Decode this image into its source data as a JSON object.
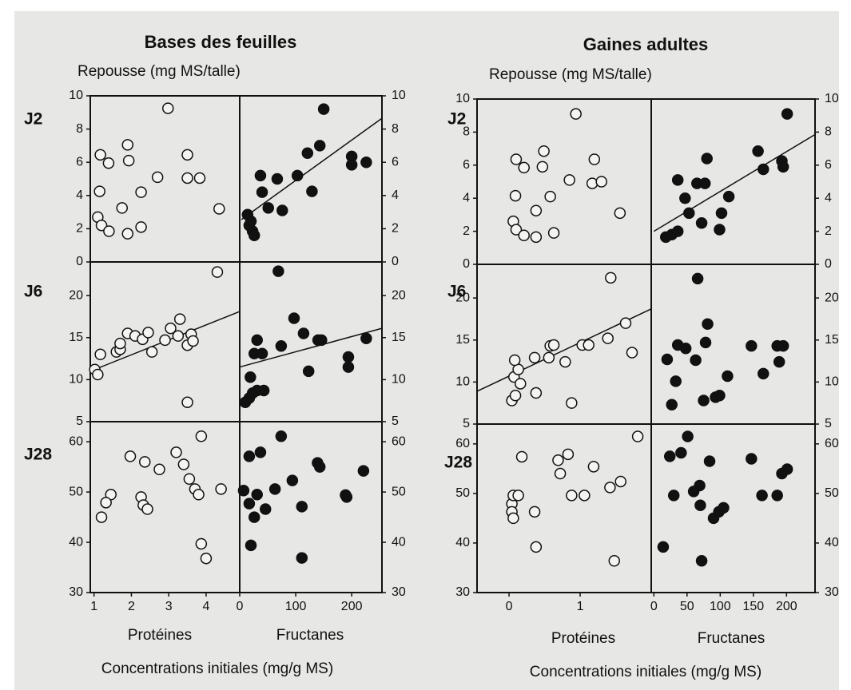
{
  "figure": {
    "groups": [
      {
        "title": "Bases des feuilles",
        "ylabel": "Repousse (mg MS/talle)",
        "rows": [
          "J2",
          "J6",
          "J28"
        ],
        "xlabels": [
          "Protéines",
          "Fructanes"
        ],
        "footer": "Concentrations initiales (mg/g MS)"
      },
      {
        "title": "Gaines adultes",
        "ylabel": "Repousse (mg MS/talle)",
        "rows": [
          "J2",
          "J6",
          "J28"
        ],
        "xlabels": [
          "Protéines",
          "Fructanes"
        ],
        "footer": "Concentrations initiales (mg/g MS)"
      }
    ]
  },
  "chart_data": [
    {
      "type": "scatter",
      "marker": "open",
      "color": "#111111",
      "xlim": [
        0.9,
        4.9
      ],
      "ylim": [
        0,
        10
      ],
      "yticks": [
        0,
        2,
        4,
        6,
        8,
        10
      ],
      "x": [
        1.17,
        1.39,
        1.15,
        1.1,
        1.2,
        1.4,
        1.9,
        1.75,
        1.9,
        1.93,
        2.26,
        2.26,
        2.7,
        2.98,
        3.5,
        3.5,
        3.83,
        4.35
      ],
      "values": [
        6.45,
        5.95,
        4.25,
        2.7,
        2.2,
        1.85,
        1.7,
        3.25,
        7.05,
        6.1,
        4.2,
        2.1,
        5.1,
        9.25,
        6.45,
        5.05,
        5.05,
        3.2
      ]
    },
    {
      "type": "scatter",
      "marker": "filled",
      "color": "#111111",
      "xlim": [
        0,
        254
      ],
      "ylim": [
        0,
        10
      ],
      "yticks": [
        0,
        2,
        4,
        6,
        8,
        10
      ],
      "x": [
        14,
        17,
        23,
        26,
        20,
        37,
        40,
        51,
        67,
        76,
        103,
        121,
        129,
        143,
        150,
        200,
        200,
        226
      ],
      "values": [
        2.85,
        2.2,
        1.85,
        1.6,
        2.45,
        5.2,
        4.2,
        3.25,
        5,
        3.1,
        5.2,
        6.55,
        4.25,
        7.0,
        9.2,
        6.35,
        5.85,
        6.0
      ],
      "trendline": {
        "x": [
          3,
          254
        ],
        "values": [
          2.55,
          8.65
        ]
      }
    },
    {
      "type": "scatter",
      "marker": "open",
      "color": "#111111",
      "xlim": [
        0.9,
        4.9
      ],
      "ylim": [
        5,
        24
      ],
      "yticks": [
        5,
        10,
        15,
        20
      ],
      "x": [
        1.02,
        1.1,
        1.17,
        1.6,
        1.7,
        1.7,
        1.9,
        2.1,
        2.3,
        2.45,
        2.55,
        2.9,
        3.05,
        3.3,
        3.25,
        3.5,
        3.6,
        3.65,
        3.5,
        4.3
      ],
      "values": [
        11.2,
        10.6,
        13.0,
        13.3,
        13.6,
        14.3,
        15.5,
        15.2,
        14.8,
        15.6,
        13.3,
        14.7,
        16.1,
        17.2,
        15.2,
        14.1,
        15.4,
        14.6,
        7.3,
        22.8
      ],
      "trendline": {
        "x": [
          0.9,
          4.9
        ],
        "values": [
          11.0,
          18.1
        ]
      }
    },
    {
      "type": "scatter",
      "marker": "filled",
      "color": "#111111",
      "xlim": [
        0,
        254
      ],
      "ylim": [
        5,
        24
      ],
      "yticks": [
        5,
        10,
        15,
        20
      ],
      "x": [
        69,
        17,
        10,
        23,
        31,
        43,
        19,
        26,
        40,
        31,
        74,
        97,
        114,
        123,
        140,
        146,
        194,
        194,
        226
      ],
      "values": [
        22.9,
        7.8,
        7.3,
        8.4,
        8.7,
        8.7,
        10.3,
        13.1,
        13.1,
        14.7,
        14.0,
        17.3,
        15.5,
        11.0,
        14.7,
        14.7,
        12.7,
        11.5,
        14.9
      ],
      "trendline": {
        "x": [
          0,
          254
        ],
        "values": [
          11.5,
          16.1
        ]
      }
    },
    {
      "type": "scatter",
      "marker": "open",
      "color": "#111111",
      "xlim": [
        0.9,
        4.9
      ],
      "ylim": [
        30,
        64
      ],
      "yticks": [
        30,
        40,
        50,
        60
      ],
      "xticks": [
        1,
        2,
        3,
        4
      ],
      "x": [
        1.45,
        1.32,
        1.2,
        1.97,
        2.36,
        2.75,
        2.26,
        2.32,
        2.43,
        3.2,
        3.4,
        3.55,
        3.7,
        3.8,
        3.87,
        3.87,
        4.0,
        4.4
      ],
      "values": [
        49.5,
        47.9,
        45.0,
        57.1,
        56.0,
        54.5,
        49.0,
        47.4,
        46.6,
        57.9,
        55.5,
        52.6,
        50.6,
        49.5,
        61.1,
        39.7,
        36.8,
        50.6
      ]
    },
    {
      "type": "scatter",
      "marker": "filled",
      "color": "#111111",
      "xlim": [
        0,
        254
      ],
      "ylim": [
        30,
        64
      ],
      "yticks": [
        30,
        40,
        50,
        60
      ],
      "xticks": [
        0,
        100,
        200
      ],
      "x": [
        7,
        17,
        17,
        20,
        26,
        31,
        37,
        46,
        63,
        74,
        94,
        111,
        111,
        139,
        143,
        189,
        191,
        221
      ],
      "values": [
        50.3,
        57.1,
        47.7,
        39.4,
        45.0,
        49.5,
        57.9,
        46.6,
        50.6,
        61.1,
        52.3,
        47.1,
        36.9,
        55.8,
        55.0,
        49.4,
        49.0,
        54.2
      ]
    },
    {
      "type": "scatter",
      "marker": "open",
      "color": "#111111",
      "xlim": [
        -0.45,
        2.0
      ],
      "ylim": [
        0,
        10
      ],
      "yticks": [
        0,
        2,
        4,
        6,
        8,
        10
      ],
      "x": [
        0.06,
        0.1,
        0.21,
        0.38,
        0.09,
        0.1,
        0.21,
        0.38,
        0.49,
        0.47,
        0.58,
        0.63,
        0.85,
        0.94,
        1.2,
        1.17,
        1.3,
        1.56
      ],
      "values": [
        2.6,
        2.1,
        1.75,
        1.65,
        4.15,
        6.35,
        5.85,
        3.25,
        6.85,
        5.9,
        4.1,
        1.9,
        5.1,
        9.1,
        6.35,
        4.9,
        5.0,
        3.1
      ]
    },
    {
      "type": "scatter",
      "marker": "filled",
      "color": "#111111",
      "xlim": [
        -4,
        243
      ],
      "ylim": [
        0,
        10
      ],
      "yticks": [
        0,
        2,
        4,
        6,
        8,
        10
      ],
      "x": [
        18,
        27,
        36,
        36,
        47,
        53,
        65,
        72,
        77,
        80,
        99,
        102,
        113,
        157,
        165,
        193,
        195,
        201
      ],
      "values": [
        1.65,
        1.8,
        2.0,
        5.1,
        4.0,
        3.1,
        4.9,
        2.5,
        4.9,
        6.4,
        2.1,
        3.1,
        4.1,
        6.85,
        5.75,
        6.25,
        5.9,
        9.1
      ],
      "trendline": {
        "x": [
          0,
          243
        ],
        "values": [
          2.0,
          7.85
        ]
      }
    },
    {
      "type": "scatter",
      "marker": "open",
      "color": "#111111",
      "xlim": [
        -0.45,
        2.0
      ],
      "ylim": [
        5,
        24
      ],
      "yticks": [
        5,
        10,
        15,
        20
      ],
      "x": [
        0.04,
        0.09,
        0.07,
        0.13,
        0.16,
        0.08,
        0.36,
        0.38,
        0.56,
        0.58,
        0.63,
        0.79,
        0.88,
        1.03,
        1.12,
        1.39,
        1.64,
        1.43,
        1.73
      ],
      "values": [
        7.8,
        8.4,
        10.6,
        11.5,
        9.8,
        12.6,
        12.9,
        8.7,
        12.9,
        14.3,
        14.4,
        12.4,
        7.5,
        14.4,
        14.4,
        15.2,
        17.0,
        22.4,
        13.5
      ],
      "trendline": {
        "x": [
          -0.45,
          2.0
        ],
        "values": [
          8.9,
          18.7
        ]
      }
    },
    {
      "type": "scatter",
      "marker": "filled",
      "color": "#111111",
      "xlim": [
        -4,
        243
      ],
      "ylim": [
        5,
        24
      ],
      "yticks": [
        5,
        10,
        15,
        20
      ],
      "x": [
        20,
        27,
        33,
        36,
        48,
        63,
        66,
        75,
        78,
        81,
        93,
        99,
        111,
        147,
        165,
        186,
        189,
        195
      ],
      "values": [
        12.7,
        7.3,
        10.1,
        14.4,
        14.0,
        12.6,
        22.3,
        7.8,
        14.7,
        16.9,
        8.2,
        8.4,
        10.7,
        14.3,
        11.0,
        14.3,
        12.4,
        14.3
      ]
    },
    {
      "type": "scatter",
      "marker": "open",
      "color": "#111111",
      "xlim": [
        -0.45,
        2.0
      ],
      "ylim": [
        30,
        64
      ],
      "yticks": [
        30,
        40,
        50,
        60
      ],
      "xticks": [
        0,
        1
      ],
      "x": [
        0.04,
        0.06,
        0.04,
        0.06,
        0.18,
        0.13,
        0.36,
        0.38,
        0.69,
        0.72,
        0.83,
        0.88,
        1.06,
        1.19,
        1.42,
        1.48,
        1.57,
        1.81
      ],
      "values": [
        47.9,
        49.6,
        46.3,
        45.0,
        57.4,
        49.6,
        46.3,
        39.2,
        56.7,
        54.0,
        57.9,
        49.6,
        49.6,
        55.4,
        51.2,
        36.4,
        52.4,
        61.5
      ]
    },
    {
      "type": "scatter",
      "marker": "filled",
      "color": "#111111",
      "xlim": [
        -4,
        243
      ],
      "ylim": [
        30,
        64
      ],
      "yticks": [
        30,
        40,
        50,
        60
      ],
      "xticks": [
        0,
        50,
        100,
        150,
        200
      ],
      "x": [
        14,
        24,
        30,
        41,
        51,
        60,
        69,
        70,
        72,
        84,
        90,
        98,
        105,
        147,
        163,
        186,
        193,
        201
      ],
      "values": [
        39.2,
        57.5,
        49.6,
        58.2,
        61.5,
        50.4,
        51.6,
        47.6,
        36.4,
        56.5,
        45.0,
        46.3,
        47.1,
        57.0,
        49.6,
        49.6,
        54.0,
        54.9
      ]
    }
  ]
}
